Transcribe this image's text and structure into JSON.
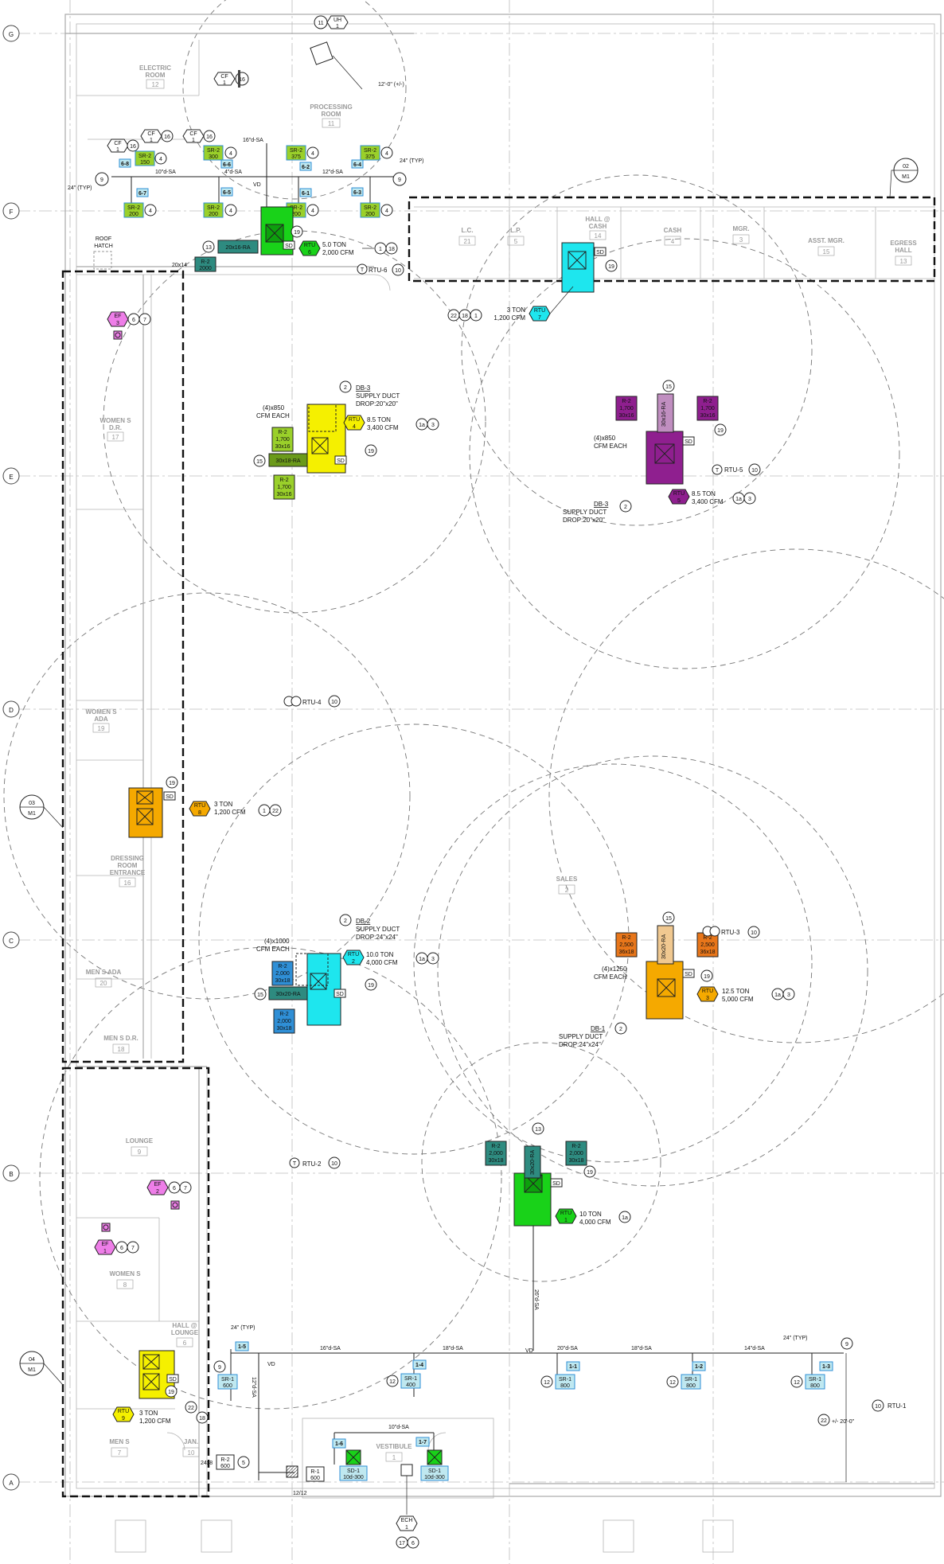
{
  "grid_labels": {
    "g": "G",
    "f": "F",
    "e": "E",
    "d": "D",
    "c": "C",
    "b": "B",
    "a": "A"
  },
  "rooms": {
    "electric": {
      "name1": "ELECTRIC",
      "name2": "ROOM",
      "num": "12"
    },
    "processing": {
      "name1": "PROCESSING",
      "name2": "ROOM",
      "num": "11"
    },
    "lc": {
      "name": "L.C.",
      "num": "21"
    },
    "lp": {
      "name": "L.P.",
      "num": "5"
    },
    "hall_cash": {
      "name1": "HALL @",
      "name2": "CASH",
      "num": "14"
    },
    "cash": {
      "name": "CASH",
      "num": "4"
    },
    "mgr": {
      "name": "MGR.",
      "num": "3"
    },
    "asst_mgr": {
      "name": "ASST. MGR.",
      "num": "15"
    },
    "egress": {
      "name1": "EGRESS",
      "name2": "HALL",
      "num": "13"
    },
    "womens_dr": {
      "name1": "WOMEN S",
      "name2": "D.R.",
      "num": "17"
    },
    "womens_ada": {
      "name1": "WOMEN S",
      "name2": "ADA",
      "num": "19"
    },
    "dressing": {
      "name1": "DRESSING",
      "name2": "ROOM",
      "name3": "ENTRANCE",
      "num": "16"
    },
    "mens_ada": {
      "name": "MEN S ADA",
      "num": "20"
    },
    "mens_dr": {
      "name": "MEN S D.R.",
      "num": "18"
    },
    "sales": {
      "name": "SALES",
      "num": "2"
    },
    "lounge": {
      "name": "LOUNGE",
      "num": "9"
    },
    "womens": {
      "name": "WOMEN S",
      "num": "8"
    },
    "hall_lounge": {
      "name1": "HALL @",
      "name2": "LOUNGE",
      "num": "6"
    },
    "mens": {
      "name": "MEN S",
      "num": "7"
    },
    "jan": {
      "name": "JAN.",
      "num": "10"
    },
    "vestibule": {
      "name": "VESTIBULE",
      "num": "1"
    }
  },
  "section_tags": {
    "s02": {
      "num": "02",
      "sheet": "M1"
    },
    "s03": {
      "num": "03",
      "sheet": "M1"
    },
    "s04": {
      "num": "04",
      "sheet": "M1"
    }
  },
  "dims": {
    "d12": "12'-0\" (+/-)",
    "typ24a": "24\" (TYP)",
    "typ24b": "24\" (TYP)",
    "typ24c": "24\" (TYP)",
    "typ24d": "24\" (TYP)",
    "elev": "+/- 20'-0\""
  },
  "labels": {
    "roof_hatch1": "ROOF",
    "roof_hatch2": "HATCH",
    "uh_tag": "UH",
    "uh_num": "1",
    "uh_key": "11",
    "cf": "CF",
    "cf_num": "1",
    "cf_key": "16",
    "ech": "ECH",
    "ech_num": "1",
    "ech_k1": "17",
    "ech_k2": "6",
    "ef": "EF",
    "ef1": "1",
    "ef2": "2",
    "ef3": "3",
    "ef_k6": "6",
    "ef_k7": "7",
    "sd": "SD",
    "vd": "VD",
    "cfm_each_850": "(4)x850",
    "cfm_each_1000": "(4)x1000",
    "cfm_each_1250": "(4)x1250",
    "cfm_each": "CFM EACH",
    "supply_drop": "SUPPLY DUCT",
    "drop20": "DROP:20\"x20\"",
    "drop24": "DROP:24\"x24\"",
    "db1": "DB-1",
    "db2": "DB-2",
    "db3": "DB-3"
  },
  "ducts": {
    "d16": "16\"d-SA",
    "d10": "10\"d-SA",
    "d4": "4\"d-SA",
    "d12": "12\"d-SA",
    "d18": "18\"d-SA",
    "d20": "20\"d-SA",
    "d14": "14\"d-SA",
    "d26": "26\"d-SA",
    "d12v": "12\"d-SA",
    "d10b": "10\"d-SA",
    "ra20x16": "20x16-RA",
    "ra30x18": "30x18-RA",
    "ra30x20": "30x20-RA",
    "ra30x16": "30x16-RA",
    "d20x14": "20x14",
    "d24x8": "24x8",
    "d12x12": "12/12"
  },
  "rtus": [
    {
      "tag": "RTU",
      "num": "6",
      "ton": "5.0 TON",
      "cfm": "2,000 CFM",
      "k1": "1",
      "k2": "18",
      "key": "RTU-6",
      "keynum": "10"
    },
    {
      "tag": "RTU",
      "num": "7",
      "ton": "3 TON",
      "cfm": "1,200 CFM",
      "k1": "22",
      "k2": "18",
      "k3": "1"
    },
    {
      "tag": "RTU",
      "num": "4",
      "ton": "8.5 TON",
      "cfm": "3,400 CFM",
      "k1": "1a",
      "k2": "3"
    },
    {
      "tag": "RTU",
      "num": "5",
      "ton": "8.5 TON",
      "cfm": "3,400 CFM",
      "k1": "1a",
      "k2": "3",
      "key": "RTU-5",
      "keynum": "10"
    },
    {
      "tag": "RTU",
      "num": "8",
      "ton": "3 TON",
      "cfm": "1,200 CFM",
      "k1": "1",
      "k2": "22"
    },
    {
      "tag": "RTU",
      "num": "2",
      "ton": "10.0 TON",
      "cfm": "4,000 CFM",
      "k1": "1a",
      "k2": "3",
      "key": "RTU-2",
      "keynum": "10"
    },
    {
      "tag": "RTU",
      "num": "3",
      "ton": "12.5 TON",
      "cfm": "5,000 CFM",
      "k1": "1a",
      "k2": "3",
      "key": "RTU-3",
      "keynum": "10"
    },
    {
      "tag": "RTU",
      "num": "1",
      "ton": "10 TON",
      "cfm": "4,000 CFM",
      "k1": "1a",
      "key": "RTU-1",
      "keynum": "10"
    },
    {
      "tag": "RTU",
      "num": "9",
      "ton": "3 TON",
      "cfm": "1,200 CFM",
      "k1": "22",
      "k2": "18"
    }
  ],
  "rtu4_key": {
    "key": "RTU-4",
    "keynum": "10"
  },
  "grilles": {
    "sr2": "SR-2",
    "sr1": "SR-1",
    "r2": "R-2",
    "r1": "R-1",
    "sd1": "SD-1",
    "v150": "150",
    "v300": "300",
    "v375": "375",
    "v200": "200",
    "v2000": "2000",
    "v1700": "1,700",
    "v2000c": "2,000",
    "v2500": "2,500",
    "v400": "400",
    "v800": "800",
    "v600": "600",
    "v10d300": "10d-300",
    "s30x16": "30x16",
    "s30x18": "30x18",
    "s36x18": "36x18",
    "t68": "6-8",
    "t67": "6-7",
    "t66": "6-6",
    "t65": "6-5",
    "t62": "6-2",
    "t61": "6-1",
    "t64": "6-4",
    "t63": "6-3",
    "t15": "1-5",
    "t14": "1-4",
    "t11": "1-1",
    "t12": "1-2",
    "t13": "1-3",
    "t16": "1-6",
    "t17": "1-7"
  },
  "keys": {
    "k2": "2",
    "k4": "4",
    "k5": "5",
    "k9": "9",
    "k12": "12",
    "k13": "13",
    "k15": "15",
    "k16": "16",
    "k19": "19",
    "k22": "22",
    "k18": "18",
    "kT": "T"
  },
  "colors": {
    "green": "#19d219",
    "cyan": "#1ee6ee",
    "yellow": "#f5f000",
    "purple": "#8f1f8f",
    "orange": "#f5a900",
    "teal": "#2e8b80",
    "pink": "#ee7ee8",
    "lgreen": "#9ad02a",
    "olive": "#6b9a1a",
    "blue": "#2f8fd6"
  }
}
